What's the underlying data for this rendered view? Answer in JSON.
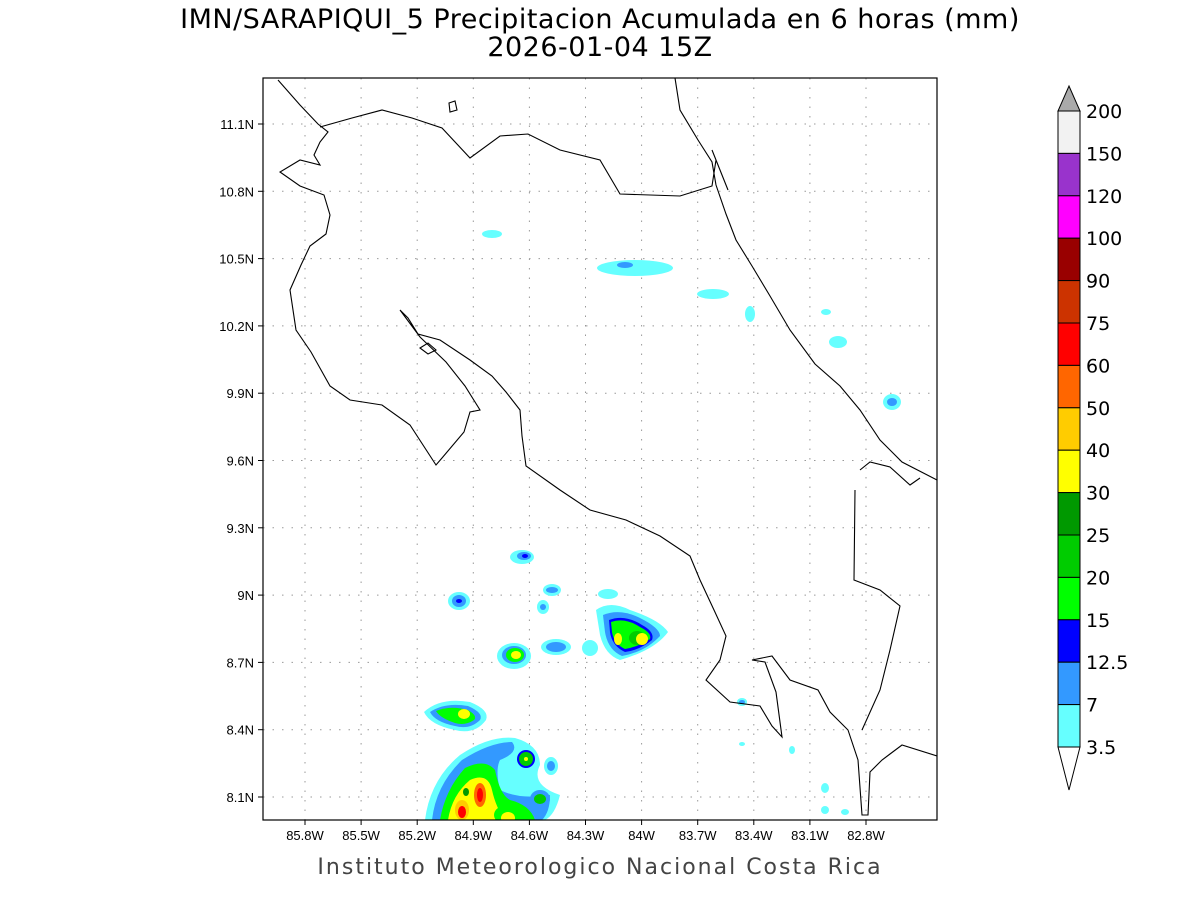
{
  "title": {
    "line1": "IMN/SARAPIQUI_5 Precipitacion Acumulada en 6 horas (mm)",
    "line2": "2026-01-04 15Z"
  },
  "footer": "Instituto Meteorologico Nacional Costa Rica",
  "map": {
    "region": "Costa Rica",
    "lon_range_W": [
      86.0,
      82.45
    ],
    "lat_range_N": [
      8.0,
      11.3
    ],
    "grid": true,
    "lon_ticks": [
      "85.8W",
      "85.5W",
      "85.2W",
      "84.9W",
      "84.6W",
      "84.3W",
      "84W",
      "83.7W",
      "83.4W",
      "83.1W",
      "82.8W"
    ],
    "lat_ticks": [
      "11.1N",
      "10.8N",
      "10.5N",
      "10.2N",
      "9.9N",
      "9.6N",
      "9.3N",
      "9N",
      "8.7N",
      "8.4N",
      "8.1N"
    ]
  },
  "colorbar": {
    "placement": "right",
    "labels": [
      "200",
      "150",
      "120",
      "100",
      "90",
      "75",
      "60",
      "50",
      "40",
      "30",
      "25",
      "20",
      "15",
      "12.5",
      "7",
      "3.5"
    ],
    "colors": [
      "#f2f2f2",
      "#9933cc",
      "#ff00ff",
      "#990000",
      "#cc3300",
      "#ff0000",
      "#ff6600",
      "#ffcc00",
      "#ffff00",
      "#009900",
      "#00cc00",
      "#00ff00",
      "#0000ff",
      "#3399ff",
      "#66ffff"
    ],
    "over_color": "#aaaaaa",
    "under_color": "#ffffff"
  }
}
